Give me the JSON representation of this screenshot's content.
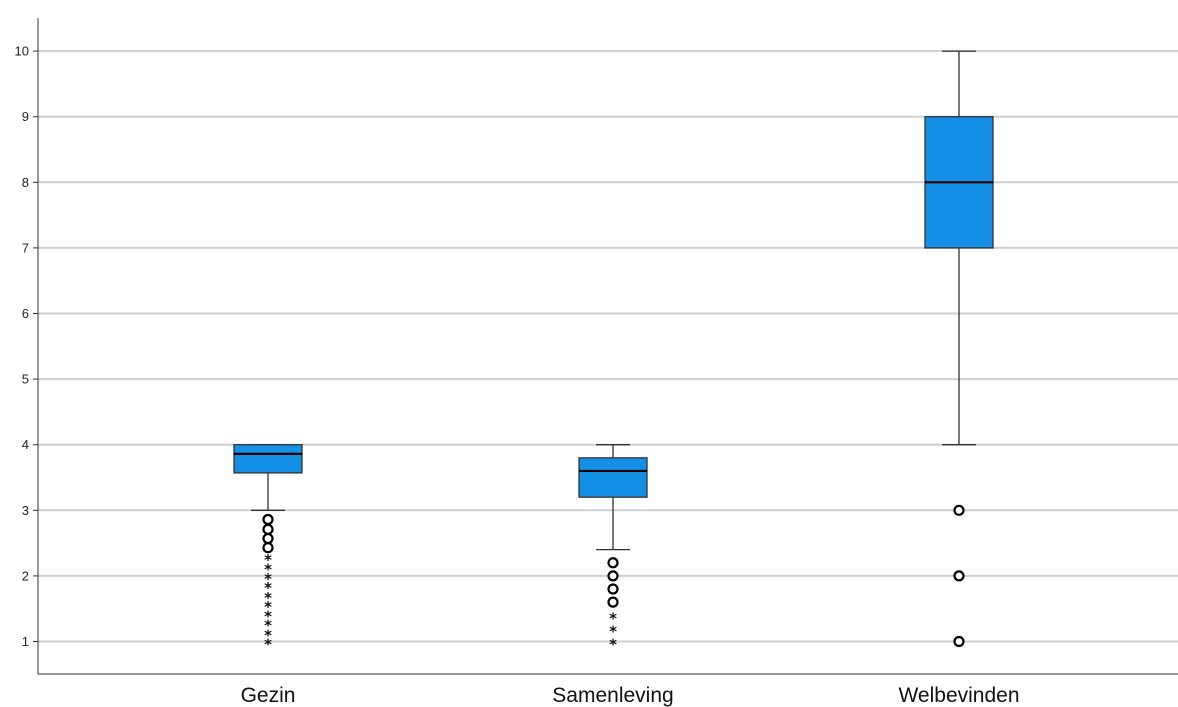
{
  "chart_data": {
    "type": "boxplot",
    "categories": [
      "Gezin",
      "Samenleving",
      "Welbevinden"
    ],
    "ylim": [
      0.5,
      10.5
    ],
    "yticks": [
      "1",
      "2",
      "3",
      "4",
      "5",
      "6",
      "7",
      "8",
      "9",
      "10"
    ],
    "grid": true,
    "box_color": "#1390e6",
    "boxes": [
      {
        "category": "Gezin",
        "whisker_low": 3.0,
        "q1": 3.57,
        "median": 3.86,
        "q3": 4.0,
        "whisker_high": 4.0,
        "outliers": [
          2.86,
          2.71,
          2.57,
          2.43
        ],
        "extremes": [
          2.29,
          2.14,
          2.0,
          1.86,
          1.71,
          1.57,
          1.43,
          1.29,
          1.14,
          1.0
        ]
      },
      {
        "category": "Samenleving",
        "whisker_low": 2.4,
        "q1": 3.2,
        "median": 3.6,
        "q3": 3.8,
        "whisker_high": 4.0,
        "outliers": [
          2.2,
          2.0,
          1.8,
          1.6
        ],
        "extremes": [
          1.4,
          1.2,
          1.0
        ]
      },
      {
        "category": "Welbevinden",
        "whisker_low": 4.0,
        "q1": 7.0,
        "median": 8.0,
        "q3": 9.0,
        "whisker_high": 10.0,
        "outliers": [
          3.0,
          2.0,
          1.0
        ],
        "extremes": []
      }
    ]
  }
}
